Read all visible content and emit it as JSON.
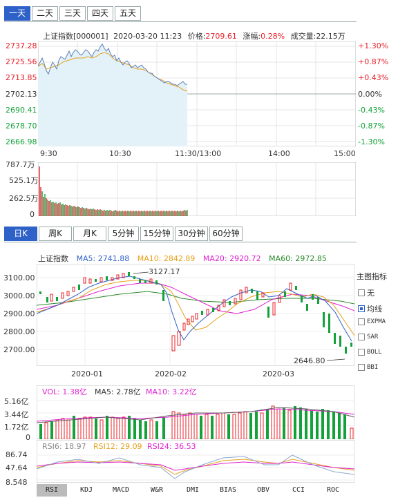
{
  "period_tabs": [
    "一天",
    "二天",
    "三天",
    "四天",
    "五天"
  ],
  "intraday": {
    "name": "上证指数",
    "code": "[000001]",
    "datetime": "2020-03-20 11:23",
    "price_label": "价格:",
    "price": "2709.61",
    "change_label": "涨幅:",
    "change": "0.28%",
    "volume_label": "成交量:",
    "volume": "22.15万",
    "y_left": [
      "2737.28",
      "2725.56",
      "2713.85",
      "2702.13",
      "2690.41",
      "2678.70",
      "2666.98"
    ],
    "y_right": [
      "+1.30%",
      "+0.87%",
      "+0.43%",
      "0.00%",
      "-0.43%",
      "-0.87%",
      "-1.30%"
    ],
    "x_labels": [
      "9:30",
      "10:30",
      "11:30/13:00",
      "14:00",
      "15:00"
    ],
    "vol_labels": [
      "787.7万",
      "525.1万",
      "262.5万",
      "0"
    ]
  },
  "kline_tabs": [
    "日K",
    "周K",
    "月K",
    "5分钟",
    "15分钟",
    "30分钟",
    "60分钟"
  ],
  "kline": {
    "name": "上证指数",
    "ma5": "MA5: 2741.88",
    "ma10": "MA10: 2842.89",
    "ma20": "MA20: 2920.72",
    "ma60": "MA60: 2972.85",
    "y_labels": [
      "3100.00",
      "3000.00",
      "2900.00",
      "2800.00",
      "2700.00"
    ],
    "x_labels": [
      "2020-01",
      "2020-02",
      "2020-03"
    ],
    "high_annot": "3127.17",
    "low_annot": "2646.80",
    "vol_line": {
      "vol": "VOL: 1.38亿",
      "ma5": "MA5: 2.78亿",
      "ma10": "MA10: 3.22亿"
    },
    "vol_labels": [
      "5.16亿",
      "3.44亿",
      "1.72亿",
      "0"
    ],
    "rsi_line": {
      "rsi6": "RSI6: 18.97",
      "rsi12": "RSI12: 29.09",
      "rsi24": "RSI24: 36.53"
    },
    "rsi_labels": [
      "86.74",
      "47.64",
      "8.548"
    ]
  },
  "indicator_panel": {
    "title": "主图指标",
    "options": [
      {
        "label": "无",
        "checked": false
      },
      {
        "label": "均线",
        "checked": true
      },
      {
        "label": "EXPMA",
        "checked": false
      },
      {
        "label": "SAR",
        "checked": false
      },
      {
        "label": "BOLL",
        "checked": false
      },
      {
        "label": "BBI",
        "checked": false
      }
    ]
  },
  "bottom_tabs": [
    "RSI",
    "KDJ",
    "MACD",
    "W&R",
    "DMI",
    "BIAS",
    "OBV",
    "CCI",
    "ROC"
  ],
  "colors": {
    "up": "#e8202a",
    "down": "#13a13a",
    "accent": "#2f62c8",
    "ma5": "#2f62c8",
    "ma10": "#e6a11c",
    "ma20": "#e020d0",
    "ma60": "#2a8a2a"
  }
}
